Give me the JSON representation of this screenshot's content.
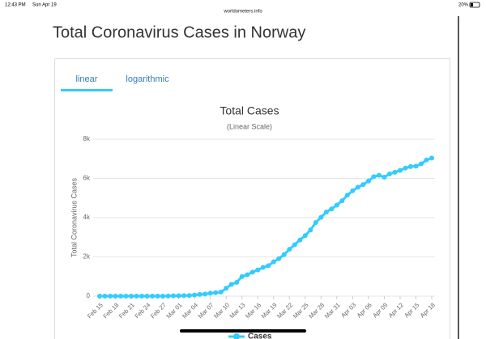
{
  "status_bar": {
    "time": "12:43 PM",
    "date": "Sun Apr 19",
    "url": "worldometers.info",
    "battery": "20%"
  },
  "page_title": "Total Coronavirus Cases in Norway",
  "tabs": [
    "linear",
    "logarithmic"
  ],
  "chart_data": {
    "type": "line",
    "title": "Total Cases",
    "subtitle": "(Linear Scale)",
    "y_label": "Total Coronavirus Cases",
    "categories": [
      "Feb 15",
      null,
      null,
      "Feb 18",
      null,
      null,
      "Feb 21",
      null,
      null,
      "Feb 24",
      null,
      null,
      "Feb 27",
      null,
      null,
      "Mar 01",
      null,
      null,
      "Mar 04",
      null,
      null,
      "Mar 07",
      null,
      null,
      "Mar 10",
      null,
      null,
      "Mar 13",
      null,
      null,
      "Mar 16",
      null,
      null,
      "Mar 19",
      null,
      null,
      "Mar 22",
      null,
      null,
      "Mar 25",
      null,
      null,
      "Mar 28",
      null,
      null,
      "Mar 31",
      null,
      null,
      "Apr 03",
      null,
      null,
      "Apr 06",
      null,
      null,
      "Apr 09",
      null,
      null,
      "Apr 12",
      null,
      null,
      "Apr 15",
      null,
      null,
      "Apr 18"
    ],
    "series": [
      {
        "name": "Cases",
        "color": "#33ccff",
        "values": [
          0,
          0,
          0,
          0,
          0,
          0,
          0,
          0,
          0,
          0,
          0,
          1,
          1,
          6,
          15,
          19,
          25,
          32,
          56,
          87,
          108,
          147,
          176,
          205,
          400,
          598,
          702,
          996,
          1090,
          1221,
          1333,
          1463,
          1550,
          1746,
          1914,
          2118,
          2385,
          2621,
          2863,
          3084,
          3369,
          3755,
          4015,
          4284,
          4445,
          4641,
          4863,
          5147,
          5370,
          5550,
          5687,
          5865,
          6086,
          6160,
          6060,
          6228,
          6314,
          6409,
          6525,
          6603,
          6623,
          6740,
          6937,
          7036
        ]
      }
    ],
    "ylim": [
      0,
      8000
    ],
    "yticks": [
      0,
      {
        "value": 2000,
        "label": "2k"
      },
      {
        "value": 4000,
        "label": "4k"
      },
      {
        "value": 6000,
        "label": "6k"
      },
      {
        "value": 8000,
        "label": "8k"
      }
    ],
    "grid": true
  }
}
